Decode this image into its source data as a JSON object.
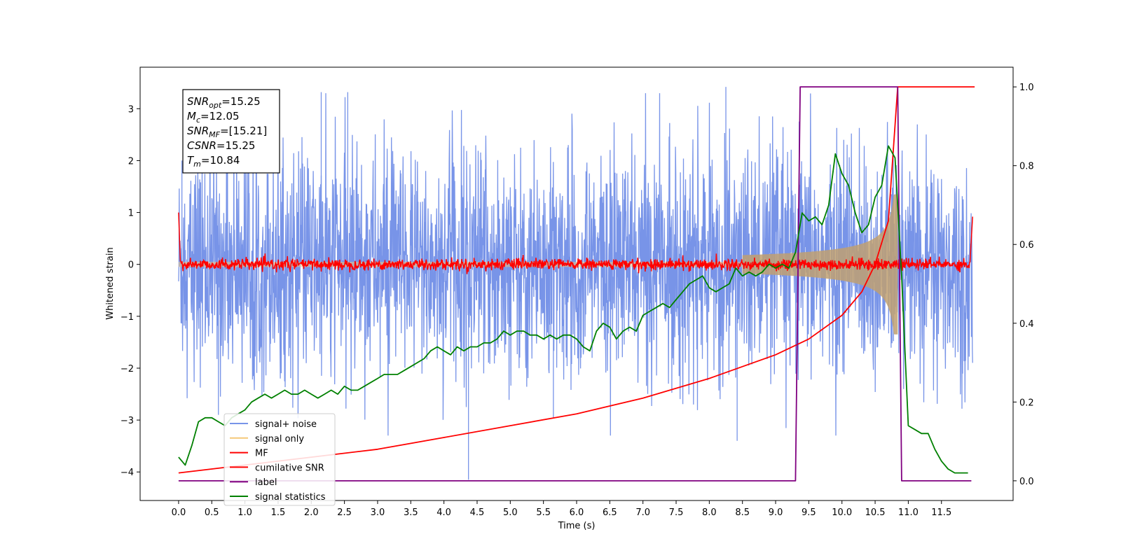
{
  "chart_data": {
    "type": "line",
    "xlabel": "Time (s)",
    "ylabel": "Whitened strain",
    "xlim": [
      -0.58,
      12.58
    ],
    "ylim": [
      -4.55,
      3.8
    ],
    "ylim_right": [
      -0.05,
      1.05
    ],
    "x_ticks": [
      0.0,
      0.5,
      1.0,
      1.5,
      2.0,
      2.5,
      3.0,
      3.5,
      4.0,
      4.5,
      5.0,
      5.5,
      6.0,
      6.5,
      7.0,
      7.5,
      8.0,
      8.5,
      9.0,
      9.5,
      10.0,
      10.5,
      11.0,
      11.5
    ],
    "x_tick_labels": [
      "0.0",
      "0.5",
      "1.0",
      "1.5",
      "2.0",
      "2.5",
      "3.0",
      "3.5",
      "4.0",
      "4.5",
      "5.0",
      "5.5",
      "6.0",
      "6.5",
      "7.0",
      "7.5",
      "8.0",
      "8.5",
      "9.0",
      "9.5",
      "10.0",
      "10.5",
      "11.0",
      "11.5"
    ],
    "y_ticks": [
      -4,
      -3,
      -2,
      -1,
      0,
      1,
      2,
      3
    ],
    "y_tick_labels": [
      "−4",
      "−3",
      "−2",
      "−1",
      "0",
      "1",
      "2",
      "3"
    ],
    "y_ticks_right": [
      0.0,
      0.2,
      0.4,
      0.6,
      0.8,
      1.0
    ],
    "y_tick_labels_right": [
      "0.0",
      "0.2",
      "0.4",
      "0.6",
      "0.8",
      "1.0"
    ],
    "grid": false,
    "legend_placement": "lower-left",
    "annotation": {
      "lines": [
        {
          "label": "SNR",
          "sub": "opt",
          "value": "=15.25"
        },
        {
          "label": "M",
          "sub": "c",
          "value": "=12.05"
        },
        {
          "label": "SNR",
          "sub": "MF",
          "value": "=[15.21]"
        },
        {
          "label": "CSNR",
          "sub": "",
          "value": "=15.25"
        },
        {
          "label": "T",
          "sub": "m",
          "value": "=10.84"
        }
      ]
    },
    "series": [
      {
        "name": "signal+ noise",
        "color": "#7894e8",
        "axis": "left",
        "kind": "noise",
        "amplitude": 1.05,
        "spikes_high": 3.4,
        "spikes_low": -4.15
      },
      {
        "name": "signal only",
        "color": "#f5c878",
        "axis": "left",
        "kind": "chirp",
        "merger_time": 10.84,
        "peak_amplitude": 1.35
      },
      {
        "name": "MF",
        "color": "#ff0000",
        "axis": "left",
        "kind": "mf",
        "baseline": 0.0,
        "start_value": 1.0,
        "end_value": 0.92
      },
      {
        "name": "cumilative SNR",
        "color": "#ff0000",
        "axis": "right",
        "kind": "cumulative",
        "x": [
          0.0,
          1.0,
          2.0,
          3.0,
          4.0,
          5.0,
          6.0,
          7.0,
          8.0,
          8.5,
          9.0,
          9.5,
          10.0,
          10.3,
          10.5,
          10.7,
          10.84,
          12.0
        ],
        "y": [
          0.02,
          0.04,
          0.06,
          0.08,
          0.11,
          0.14,
          0.17,
          0.21,
          0.26,
          0.29,
          0.32,
          0.36,
          0.42,
          0.48,
          0.55,
          0.66,
          1.0,
          1.0
        ]
      },
      {
        "name": "label",
        "color": "#800080",
        "axis": "right",
        "kind": "step",
        "x": [
          0.0,
          9.3,
          9.37,
          10.84,
          10.9,
          11.95
        ],
        "y": [
          0.0,
          0.0,
          1.0,
          1.0,
          0.0,
          0.0
        ]
      },
      {
        "name": "signal statistics",
        "color": "#008000",
        "axis": "right",
        "kind": "stat",
        "x": [
          0.0,
          0.1,
          0.2,
          0.3,
          0.4,
          0.5,
          0.6,
          0.7,
          0.8,
          0.9,
          1.0,
          1.1,
          1.2,
          1.3,
          1.4,
          1.5,
          1.6,
          1.7,
          1.8,
          1.9,
          2.0,
          2.1,
          2.2,
          2.3,
          2.4,
          2.5,
          2.6,
          2.7,
          2.8,
          2.9,
          3.0,
          3.1,
          3.2,
          3.3,
          3.4,
          3.5,
          3.6,
          3.7,
          3.8,
          3.9,
          4.0,
          4.1,
          4.2,
          4.3,
          4.4,
          4.5,
          4.6,
          4.7,
          4.8,
          4.9,
          5.0,
          5.1,
          5.2,
          5.3,
          5.4,
          5.5,
          5.6,
          5.7,
          5.8,
          5.9,
          6.0,
          6.1,
          6.2,
          6.3,
          6.4,
          6.5,
          6.6,
          6.7,
          6.8,
          6.9,
          7.0,
          7.1,
          7.2,
          7.3,
          7.4,
          7.5,
          7.6,
          7.7,
          7.8,
          7.9,
          8.0,
          8.1,
          8.2,
          8.3,
          8.4,
          8.5,
          8.6,
          8.7,
          8.8,
          8.9,
          9.0,
          9.1,
          9.2,
          9.3,
          9.4,
          9.5,
          9.6,
          9.7,
          9.8,
          9.9,
          10.0,
          10.1,
          10.2,
          10.3,
          10.4,
          10.5,
          10.6,
          10.7,
          10.8,
          10.9,
          11.0,
          11.1,
          11.2,
          11.3,
          11.4,
          11.5,
          11.6,
          11.7,
          11.8,
          11.9
        ],
        "y": [
          0.06,
          0.04,
          0.09,
          0.15,
          0.16,
          0.16,
          0.15,
          0.14,
          0.16,
          0.17,
          0.18,
          0.2,
          0.21,
          0.22,
          0.21,
          0.22,
          0.23,
          0.22,
          0.22,
          0.23,
          0.22,
          0.21,
          0.22,
          0.23,
          0.22,
          0.24,
          0.23,
          0.23,
          0.24,
          0.25,
          0.26,
          0.27,
          0.27,
          0.27,
          0.28,
          0.29,
          0.3,
          0.31,
          0.33,
          0.34,
          0.33,
          0.32,
          0.34,
          0.33,
          0.34,
          0.34,
          0.35,
          0.35,
          0.36,
          0.38,
          0.37,
          0.38,
          0.38,
          0.37,
          0.37,
          0.36,
          0.37,
          0.36,
          0.37,
          0.37,
          0.36,
          0.34,
          0.33,
          0.38,
          0.4,
          0.39,
          0.36,
          0.38,
          0.39,
          0.38,
          0.42,
          0.43,
          0.44,
          0.45,
          0.44,
          0.46,
          0.48,
          0.5,
          0.51,
          0.52,
          0.49,
          0.48,
          0.49,
          0.5,
          0.54,
          0.52,
          0.53,
          0.52,
          0.53,
          0.55,
          0.54,
          0.55,
          0.54,
          0.58,
          0.68,
          0.66,
          0.67,
          0.65,
          0.7,
          0.83,
          0.78,
          0.75,
          0.68,
          0.63,
          0.65,
          0.72,
          0.75,
          0.85,
          0.82,
          0.52,
          0.14,
          0.13,
          0.12,
          0.12,
          0.08,
          0.05,
          0.03,
          0.02,
          0.02,
          0.02
        ]
      }
    ]
  }
}
